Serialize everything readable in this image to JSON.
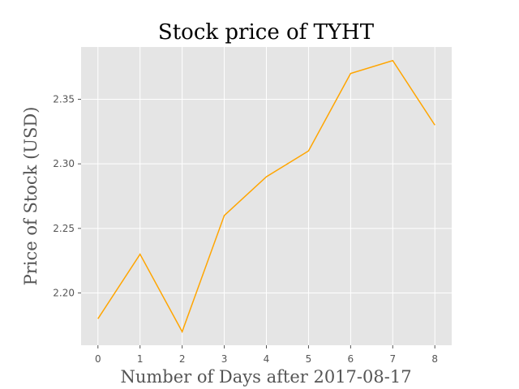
{
  "chart_data": {
    "type": "line",
    "title": "Stock price of TYHT",
    "xlabel": "Number of Days after 2017-08-17",
    "ylabel": "Price of Stock (USD)",
    "x": [
      0,
      1,
      2,
      3,
      4,
      5,
      6,
      7,
      8
    ],
    "series": [
      {
        "values": [
          2.18,
          2.23,
          2.17,
          2.26,
          2.29,
          2.31,
          2.37,
          2.38,
          2.33
        ],
        "color": "#ffa500"
      }
    ],
    "xticks": [
      "0",
      "1",
      "2",
      "3",
      "4",
      "5",
      "6",
      "7",
      "8"
    ],
    "yticks": [
      "2.20",
      "2.25",
      "2.30",
      "2.35"
    ],
    "xlim": [
      -0.4,
      8.4
    ],
    "ylim": [
      2.1595,
      2.3905
    ],
    "grid": true,
    "style": {
      "plot_background": "#e5e5e5",
      "grid_color": "#ffffff",
      "tick_color": "#555555"
    }
  }
}
